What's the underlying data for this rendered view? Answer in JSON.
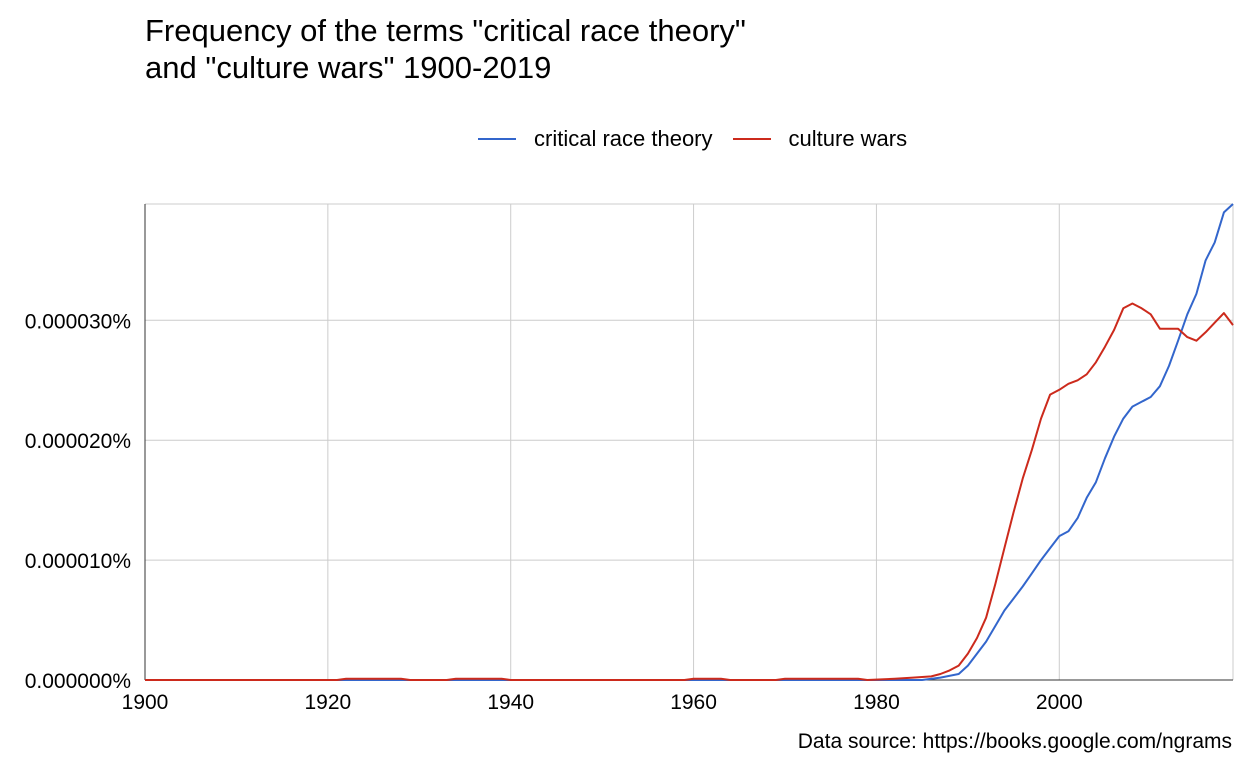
{
  "title": "Frequency of the terms \"critical race theory\"\nand \"culture wars\" 1900-2019",
  "source": "Data source: https://books.google.com/ngrams",
  "chart_data": {
    "type": "line",
    "title": "Frequency of the terms \"critical race theory\" and \"culture wars\" 1900-2019",
    "xlabel": "",
    "ylabel": "",
    "xlim": [
      1900,
      2019
    ],
    "ylim": [
      0,
      3.97e-05
    ],
    "legend_position": "top",
    "grid": true,
    "x_ticks": [
      1900,
      1920,
      1940,
      1960,
      1980,
      2000
    ],
    "x_tick_labels": [
      "1900",
      "1920",
      "1940",
      "1960",
      "1980",
      "2000"
    ],
    "y_ticks": [
      0,
      1e-05,
      2e-05,
      3e-05
    ],
    "y_tick_labels": [
      "0.000000%",
      "0.000010%",
      "0.000020%",
      "0.000030%"
    ],
    "series": [
      {
        "name": "critical race theory",
        "color": "#3366cc",
        "points": [
          [
            1900,
            0
          ],
          [
            1920,
            0
          ],
          [
            1940,
            0
          ],
          [
            1960,
            0
          ],
          [
            1980,
            0
          ],
          [
            1985,
            0
          ],
          [
            1987,
            2e-07
          ],
          [
            1989,
            5e-07
          ],
          [
            1990,
            1.2e-06
          ],
          [
            1991,
            2.2e-06
          ],
          [
            1992,
            3.2e-06
          ],
          [
            1993,
            4.5e-06
          ],
          [
            1994,
            5.8e-06
          ],
          [
            1995,
            6.8e-06
          ],
          [
            1996,
            7.8e-06
          ],
          [
            1997,
            8.9e-06
          ],
          [
            1998,
            1e-05
          ],
          [
            1999,
            1.1e-05
          ],
          [
            2000,
            1.2e-05
          ],
          [
            2001,
            1.24e-05
          ],
          [
            2002,
            1.35e-05
          ],
          [
            2003,
            1.52e-05
          ],
          [
            2004,
            1.65e-05
          ],
          [
            2005,
            1.85e-05
          ],
          [
            2006,
            2.03e-05
          ],
          [
            2007,
            2.18e-05
          ],
          [
            2008,
            2.28e-05
          ],
          [
            2009,
            2.32e-05
          ],
          [
            2010,
            2.36e-05
          ],
          [
            2011,
            2.45e-05
          ],
          [
            2012,
            2.62e-05
          ],
          [
            2013,
            2.83e-05
          ],
          [
            2014,
            3.05e-05
          ],
          [
            2015,
            3.22e-05
          ],
          [
            2016,
            3.5e-05
          ],
          [
            2017,
            3.65e-05
          ],
          [
            2018,
            3.9e-05
          ],
          [
            2019,
            3.97e-05
          ]
        ]
      },
      {
        "name": "culture wars",
        "color": "#cc2a1c",
        "points": [
          [
            1900,
            0
          ],
          [
            1921,
            0
          ],
          [
            1922,
            1e-07
          ],
          [
            1928,
            1e-07
          ],
          [
            1929,
            0
          ],
          [
            1933,
            0
          ],
          [
            1934,
            1e-07
          ],
          [
            1939,
            1e-07
          ],
          [
            1940,
            0
          ],
          [
            1959,
            0
          ],
          [
            1960,
            1e-07
          ],
          [
            1963,
            1e-07
          ],
          [
            1964,
            0
          ],
          [
            1969,
            0
          ],
          [
            1970,
            1e-07
          ],
          [
            1978,
            1e-07
          ],
          [
            1979,
            0
          ],
          [
            1982,
            1e-07
          ],
          [
            1984,
            2e-07
          ],
          [
            1986,
            3e-07
          ],
          [
            1987,
            5e-07
          ],
          [
            1988,
            8e-07
          ],
          [
            1989,
            1.2e-06
          ],
          [
            1990,
            2.2e-06
          ],
          [
            1991,
            3.5e-06
          ],
          [
            1992,
            5.2e-06
          ],
          [
            1993,
            8e-06
          ],
          [
            1994,
            1.1e-05
          ],
          [
            1995,
            1.4e-05
          ],
          [
            1996,
            1.68e-05
          ],
          [
            1997,
            1.92e-05
          ],
          [
            1998,
            2.18e-05
          ],
          [
            1999,
            2.38e-05
          ],
          [
            2000,
            2.42e-05
          ],
          [
            2001,
            2.47e-05
          ],
          [
            2002,
            2.5e-05
          ],
          [
            2003,
            2.55e-05
          ],
          [
            2004,
            2.65e-05
          ],
          [
            2005,
            2.78e-05
          ],
          [
            2006,
            2.92e-05
          ],
          [
            2007,
            3.1e-05
          ],
          [
            2008,
            3.14e-05
          ],
          [
            2009,
            3.1e-05
          ],
          [
            2010,
            3.05e-05
          ],
          [
            2011,
            2.93e-05
          ],
          [
            2012,
            2.93e-05
          ],
          [
            2013,
            2.93e-05
          ],
          [
            2014,
            2.86e-05
          ],
          [
            2015,
            2.83e-05
          ],
          [
            2016,
            2.9e-05
          ],
          [
            2017,
            2.98e-05
          ],
          [
            2018,
            3.06e-05
          ],
          [
            2019,
            2.96e-05
          ]
        ]
      }
    ]
  }
}
